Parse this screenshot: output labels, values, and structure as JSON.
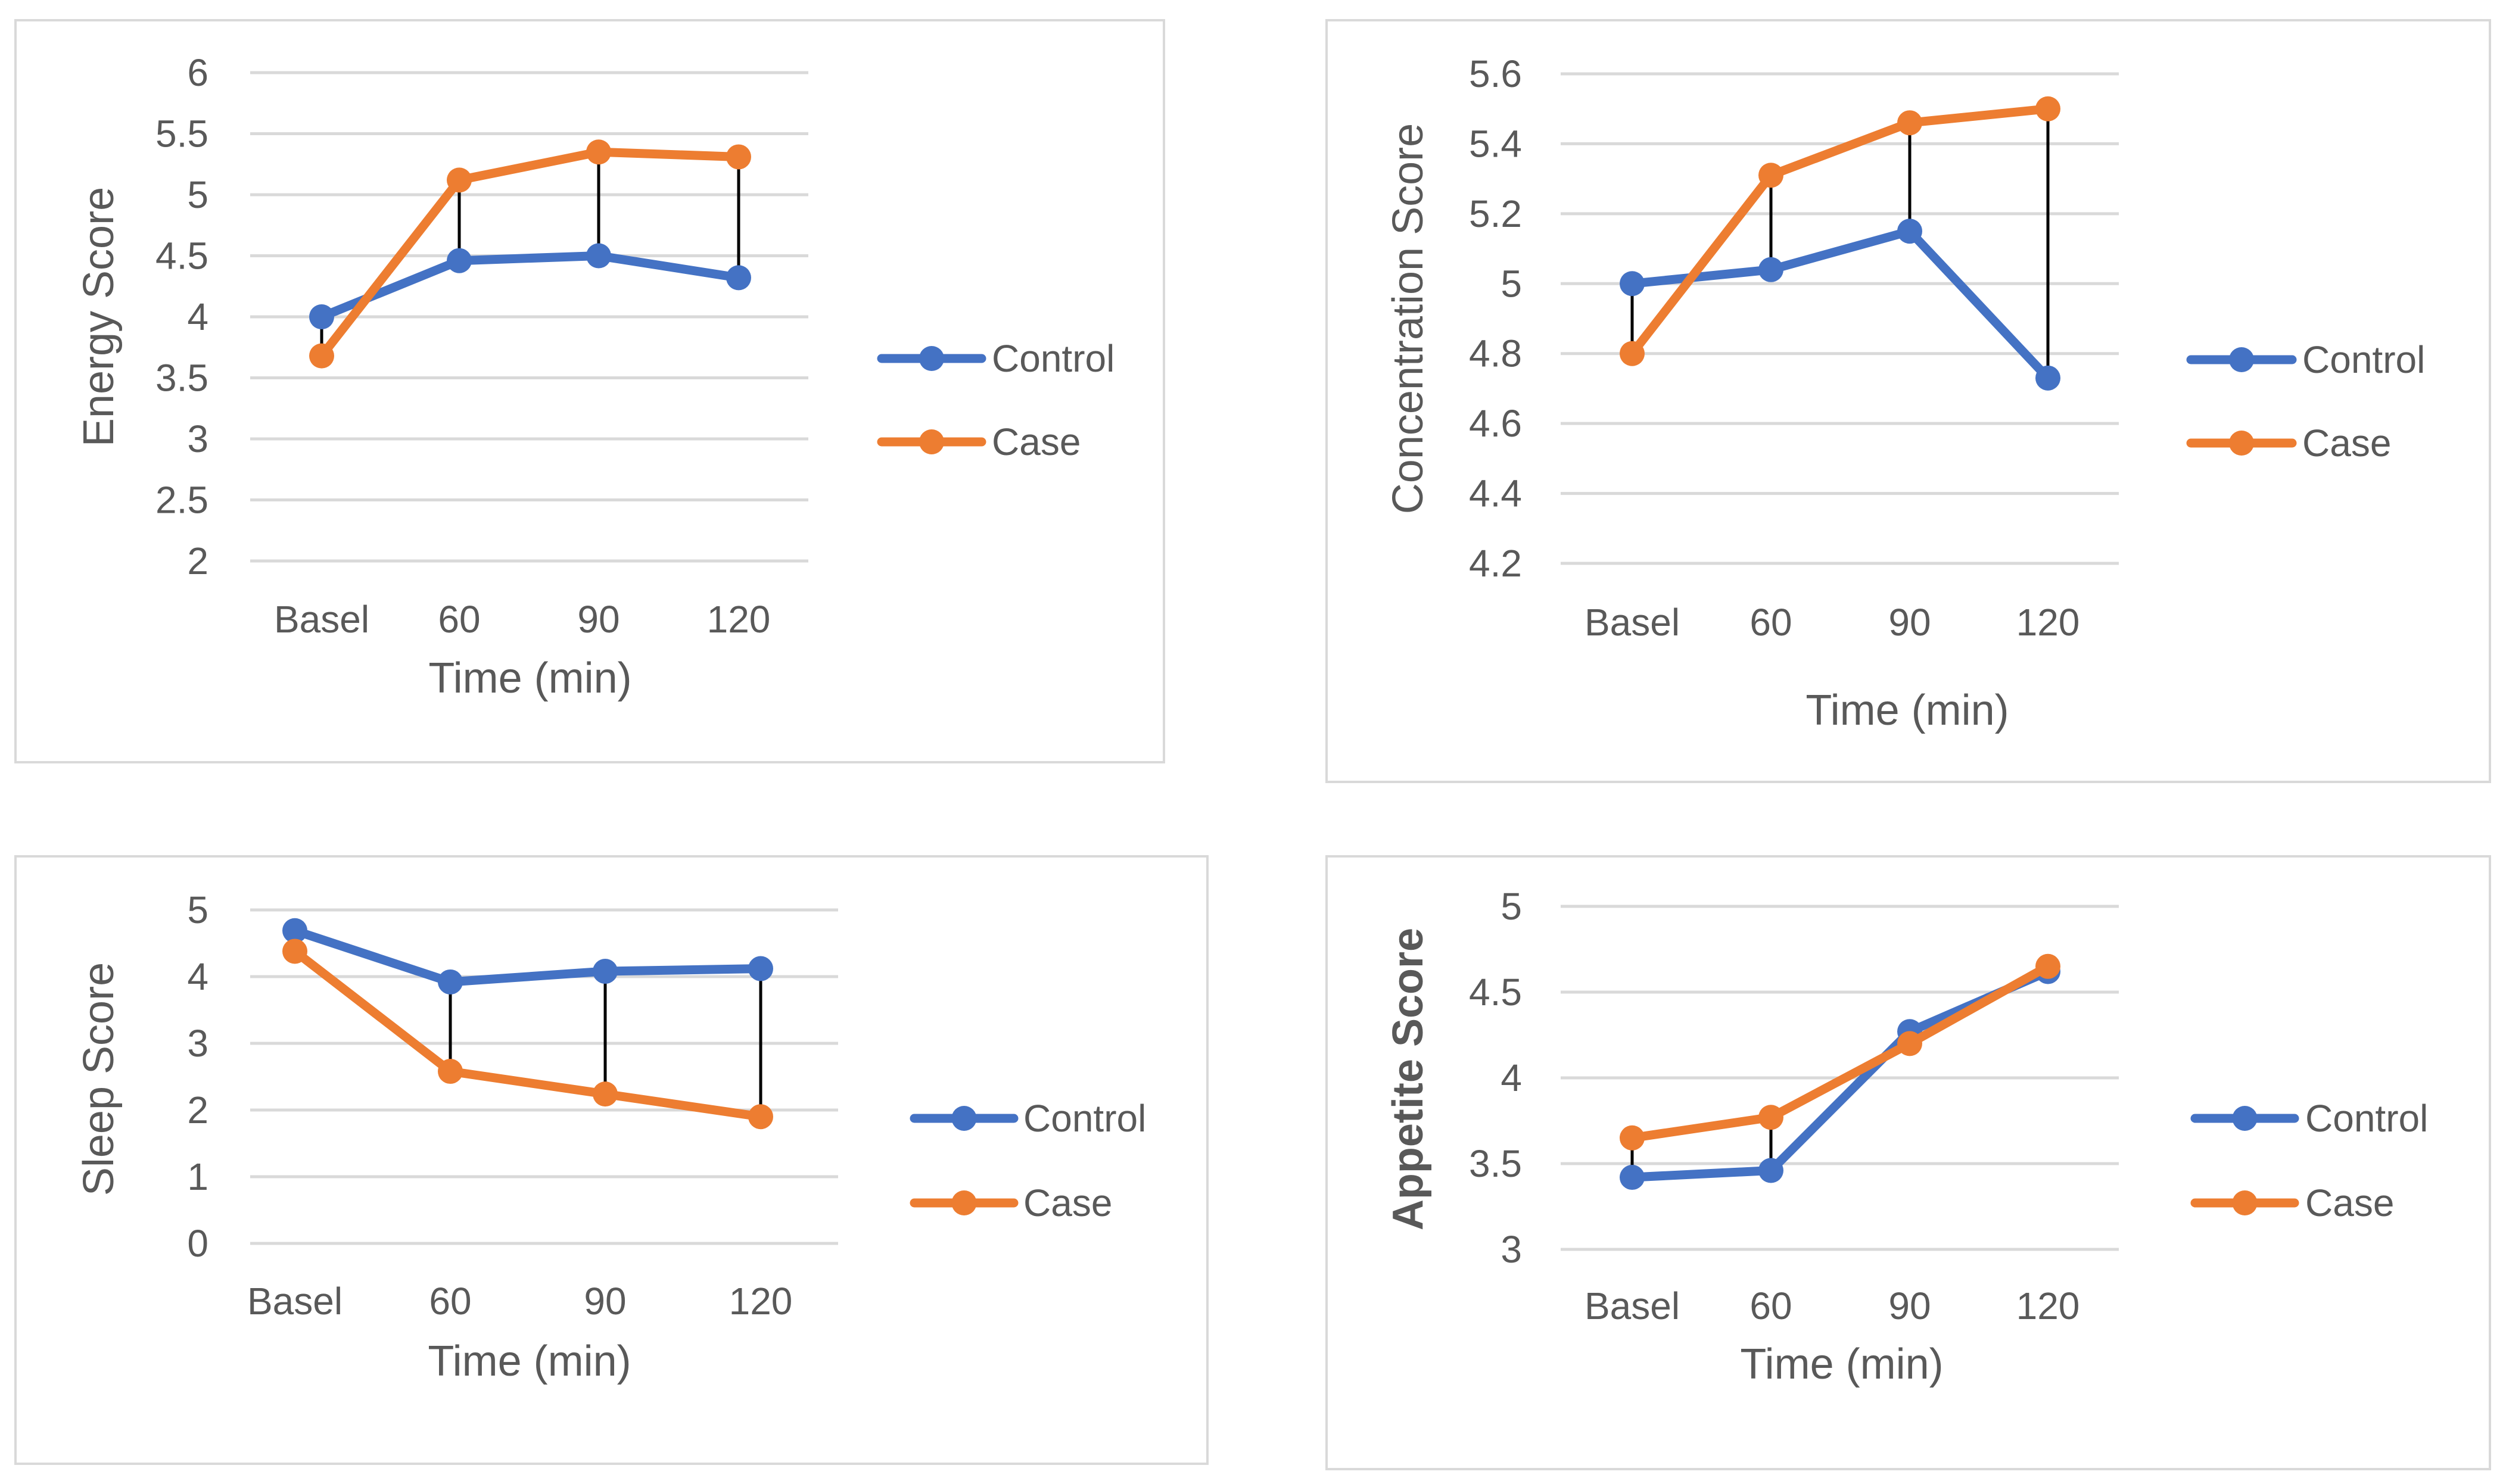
{
  "chart_data": [
    {
      "id": "energy",
      "type": "line",
      "title": "",
      "xlabel": "Time (min)",
      "ylabel": "Energy Score",
      "ylabel_bold": false,
      "categories": [
        "Basel",
        "60",
        "90",
        "120"
      ],
      "ylim": [
        2,
        6
      ],
      "yticks": [
        "2",
        "2.5",
        "3",
        "3.5",
        "4",
        "4.5",
        "5",
        "5.5",
        "6"
      ],
      "series": [
        {
          "name": "Control",
          "color": "#4472c4",
          "values": [
            4.0,
            4.46,
            4.5,
            4.32
          ]
        },
        {
          "name": "Case",
          "color": "#ed7d31",
          "values": [
            3.68,
            5.12,
            5.35,
            5.31
          ]
        }
      ],
      "high_low_lines": true,
      "legend": "right"
    },
    {
      "id": "concentration",
      "type": "line",
      "title": "",
      "xlabel": "Time (min)",
      "ylabel": "Concentration Score",
      "ylabel_bold": false,
      "categories": [
        "Basel",
        "60",
        "90",
        "120"
      ],
      "ylim": [
        4.2,
        5.6
      ],
      "yticks": [
        "4.2",
        "4.4",
        "4.6",
        "4.8",
        "5",
        "5.2",
        "5.4",
        "5.6"
      ],
      "series": [
        {
          "name": "Control",
          "color": "#4472c4",
          "values": [
            5.0,
            5.04,
            5.15,
            4.73
          ]
        },
        {
          "name": "Case",
          "color": "#ed7d31",
          "values": [
            4.8,
            5.31,
            5.46,
            5.5
          ]
        }
      ],
      "high_low_lines": true,
      "legend": "right"
    },
    {
      "id": "sleep",
      "type": "line",
      "title": "",
      "xlabel": "Time (min)",
      "ylabel": "Sleep Score",
      "ylabel_bold": false,
      "categories": [
        "Basel",
        "60",
        "90",
        "120"
      ],
      "ylim": [
        0,
        5
      ],
      "yticks": [
        "0",
        "1",
        "2",
        "3",
        "4",
        "5"
      ],
      "series": [
        {
          "name": "Control",
          "color": "#4472c4",
          "values": [
            4.69,
            3.92,
            4.08,
            4.12
          ]
        },
        {
          "name": "Case",
          "color": "#ed7d31",
          "values": [
            4.38,
            2.58,
            2.24,
            1.9
          ]
        }
      ],
      "high_low_lines": true,
      "legend": "right"
    },
    {
      "id": "appetite",
      "type": "line",
      "title": "",
      "xlabel": "Time (min)",
      "ylabel": "Appetite Score",
      "ylabel_bold": true,
      "categories": [
        "Basel",
        "60",
        "90",
        "120"
      ],
      "ylim": [
        3,
        5
      ],
      "yticks": [
        "3",
        "3.5",
        "4",
        "4.5",
        "5"
      ],
      "series": [
        {
          "name": "Control",
          "color": "#4472c4",
          "values": [
            3.42,
            3.46,
            4.27,
            4.62
          ]
        },
        {
          "name": "Case",
          "color": "#ed7d31",
          "values": [
            3.65,
            3.77,
            4.2,
            4.65
          ]
        }
      ],
      "high_low_lines": true,
      "legend": "right"
    }
  ]
}
